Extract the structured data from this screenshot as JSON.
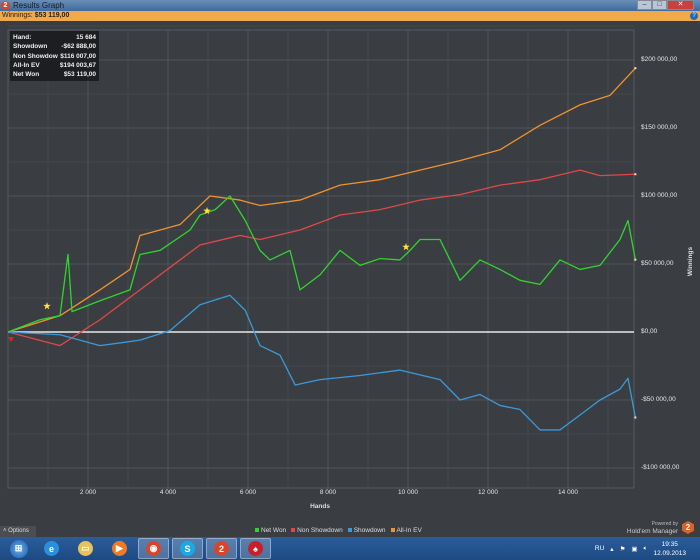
{
  "window": {
    "title": "Results Graph",
    "app_icon_text": "2",
    "minimize": "–",
    "maximize": "□",
    "close": "✕"
  },
  "subheader": {
    "label": "Winnings:",
    "value": "$53 119,00",
    "help_icon": "?"
  },
  "info_box": {
    "rows": [
      {
        "label": "Hand:",
        "value": "15 684"
      },
      {
        "label": "Showdown",
        "value": "-$62 888,00"
      },
      {
        "label": "Non Showdow",
        "value": "$116 007,00"
      },
      {
        "label": "All-In EV",
        "value": "$194 003,67"
      },
      {
        "label": "Net Won",
        "value": "$53 119,00"
      }
    ]
  },
  "options_label": "Options",
  "powered_by": "Powered by",
  "brand": "Hold'em Manager",
  "brand_logo": "2",
  "chart_data": {
    "type": "line",
    "xlabel": "Hands",
    "ylabel": "Winnings",
    "xlim": [
      0,
      15684
    ],
    "ylim": [
      -115000,
      230000
    ],
    "grid": true,
    "legend": "bottom-right",
    "x_ticks": [
      {
        "v": 2000,
        "label": "2 000"
      },
      {
        "v": 4000,
        "label": "4 000"
      },
      {
        "v": 6000,
        "label": "6 000"
      },
      {
        "v": 8000,
        "label": "8 000"
      },
      {
        "v": 10000,
        "label": "10 000"
      },
      {
        "v": 12000,
        "label": "12 000"
      },
      {
        "v": 14000,
        "label": "14 000"
      }
    ],
    "y_ticks": [
      {
        "v": 200000,
        "label": "$200 000,00"
      },
      {
        "v": 150000,
        "label": "$150 000,00"
      },
      {
        "v": 100000,
        "label": "$100 000,00"
      },
      {
        "v": 50000,
        "label": "$50 000,00"
      },
      {
        "v": 0,
        "label": "$0,00"
      },
      {
        "v": -50000,
        "label": "-$50 000,00"
      },
      {
        "v": -100000,
        "label": "-$100 000,00"
      }
    ],
    "series": [
      {
        "name": "Net Won",
        "color": "#2fd52f",
        "points": [
          [
            0,
            0
          ],
          [
            800,
            9000
          ],
          [
            1300,
            12000
          ],
          [
            1500,
            57000
          ],
          [
            1600,
            15000
          ],
          [
            2300,
            23000
          ],
          [
            3050,
            31000
          ],
          [
            3300,
            57000
          ],
          [
            3800,
            60000
          ],
          [
            4550,
            75000
          ],
          [
            4800,
            86000
          ],
          [
            5180,
            90000
          ],
          [
            5550,
            100000
          ],
          [
            5930,
            82000
          ],
          [
            6300,
            60000
          ],
          [
            6550,
            53000
          ],
          [
            7050,
            60000
          ],
          [
            7300,
            31000
          ],
          [
            7800,
            42000
          ],
          [
            8300,
            60000
          ],
          [
            8800,
            49000
          ],
          [
            9300,
            54000
          ],
          [
            9800,
            53000
          ],
          [
            10050,
            60000
          ],
          [
            10300,
            68000
          ],
          [
            10800,
            68000
          ],
          [
            11300,
            38000
          ],
          [
            11800,
            53000
          ],
          [
            12300,
            46000
          ],
          [
            12800,
            38000
          ],
          [
            13300,
            35000
          ],
          [
            13800,
            53000
          ],
          [
            14300,
            46000
          ],
          [
            14800,
            49000
          ],
          [
            15300,
            68000
          ],
          [
            15500,
            82000
          ],
          [
            15684,
            53119
          ]
        ]
      },
      {
        "name": "Non Showdown",
        "color": "#e04848",
        "points": [
          [
            0,
            0
          ],
          [
            1300,
            -10000
          ],
          [
            2300,
            9000
          ],
          [
            3300,
            31000
          ],
          [
            4300,
            53000
          ],
          [
            4800,
            64000
          ],
          [
            5800,
            71000
          ],
          [
            6300,
            68000
          ],
          [
            7300,
            75000
          ],
          [
            8300,
            86000
          ],
          [
            9300,
            90000
          ],
          [
            10300,
            97000
          ],
          [
            11300,
            101000
          ],
          [
            12300,
            108000
          ],
          [
            13300,
            112000
          ],
          [
            14300,
            119000
          ],
          [
            14800,
            115000
          ],
          [
            15684,
            116007
          ]
        ]
      },
      {
        "name": "Showdown",
        "color": "#3a9ad9",
        "points": [
          [
            0,
            0
          ],
          [
            1300,
            -2000
          ],
          [
            2300,
            -10000
          ],
          [
            3300,
            -6000
          ],
          [
            4050,
            1000
          ],
          [
            4800,
            20000
          ],
          [
            5550,
            27000
          ],
          [
            5930,
            16000
          ],
          [
            6300,
            -10000
          ],
          [
            6800,
            -17000
          ],
          [
            7180,
            -39000
          ],
          [
            7800,
            -35000
          ],
          [
            8800,
            -32000
          ],
          [
            9800,
            -28000
          ],
          [
            10800,
            -35000
          ],
          [
            11300,
            -50000
          ],
          [
            11800,
            -46000
          ],
          [
            12300,
            -54000
          ],
          [
            12800,
            -57000
          ],
          [
            13300,
            -72000
          ],
          [
            13800,
            -72000
          ],
          [
            14300,
            -61000
          ],
          [
            14800,
            -50000
          ],
          [
            15300,
            -42000
          ],
          [
            15500,
            -34000
          ],
          [
            15684,
            -62888
          ]
        ]
      },
      {
        "name": "All-In EV",
        "color": "#f0922e",
        "points": [
          [
            0,
            0
          ],
          [
            1300,
            12000
          ],
          [
            2300,
            31000
          ],
          [
            3050,
            46000
          ],
          [
            3300,
            71000
          ],
          [
            4300,
            79000
          ],
          [
            5050,
            100000
          ],
          [
            5800,
            97000
          ],
          [
            6300,
            93000
          ],
          [
            7300,
            97000
          ],
          [
            8300,
            108000
          ],
          [
            9300,
            112000
          ],
          [
            10300,
            119000
          ],
          [
            11300,
            126000
          ],
          [
            12300,
            134000
          ],
          [
            13300,
            152000
          ],
          [
            14300,
            167000
          ],
          [
            15050,
            174000
          ],
          [
            15684,
            194004
          ]
        ]
      }
    ],
    "markers": [
      {
        "hands": 975,
        "value": 19000,
        "color": "#ffe23a",
        "shape": "star"
      },
      {
        "hands": 4975,
        "value": 89000,
        "color": "#ffe23a",
        "shape": "star"
      },
      {
        "hands": 9950,
        "value": 62500,
        "color": "#ffe23a",
        "shape": "star"
      }
    ]
  },
  "taskbar": {
    "items": [
      {
        "name": "internet-explorer",
        "glyph": "e",
        "color": "#2a8fe0"
      },
      {
        "name": "explorer",
        "glyph": "▭",
        "color": "#e8c15a"
      },
      {
        "name": "media-player",
        "glyph": "▶",
        "color": "#f07a22"
      },
      {
        "name": "chrome",
        "glyph": "◉",
        "color": "#d9452b"
      },
      {
        "name": "skype",
        "glyph": "S",
        "color": "#19a9e5"
      },
      {
        "name": "holdem-manager",
        "glyph": "2",
        "color": "#d9452b"
      },
      {
        "name": "pokerstars",
        "glyph": "♠",
        "color": "#c8202a"
      }
    ],
    "tray": {
      "language": "RU",
      "time": "19:35",
      "date": "12.09.2013"
    }
  }
}
